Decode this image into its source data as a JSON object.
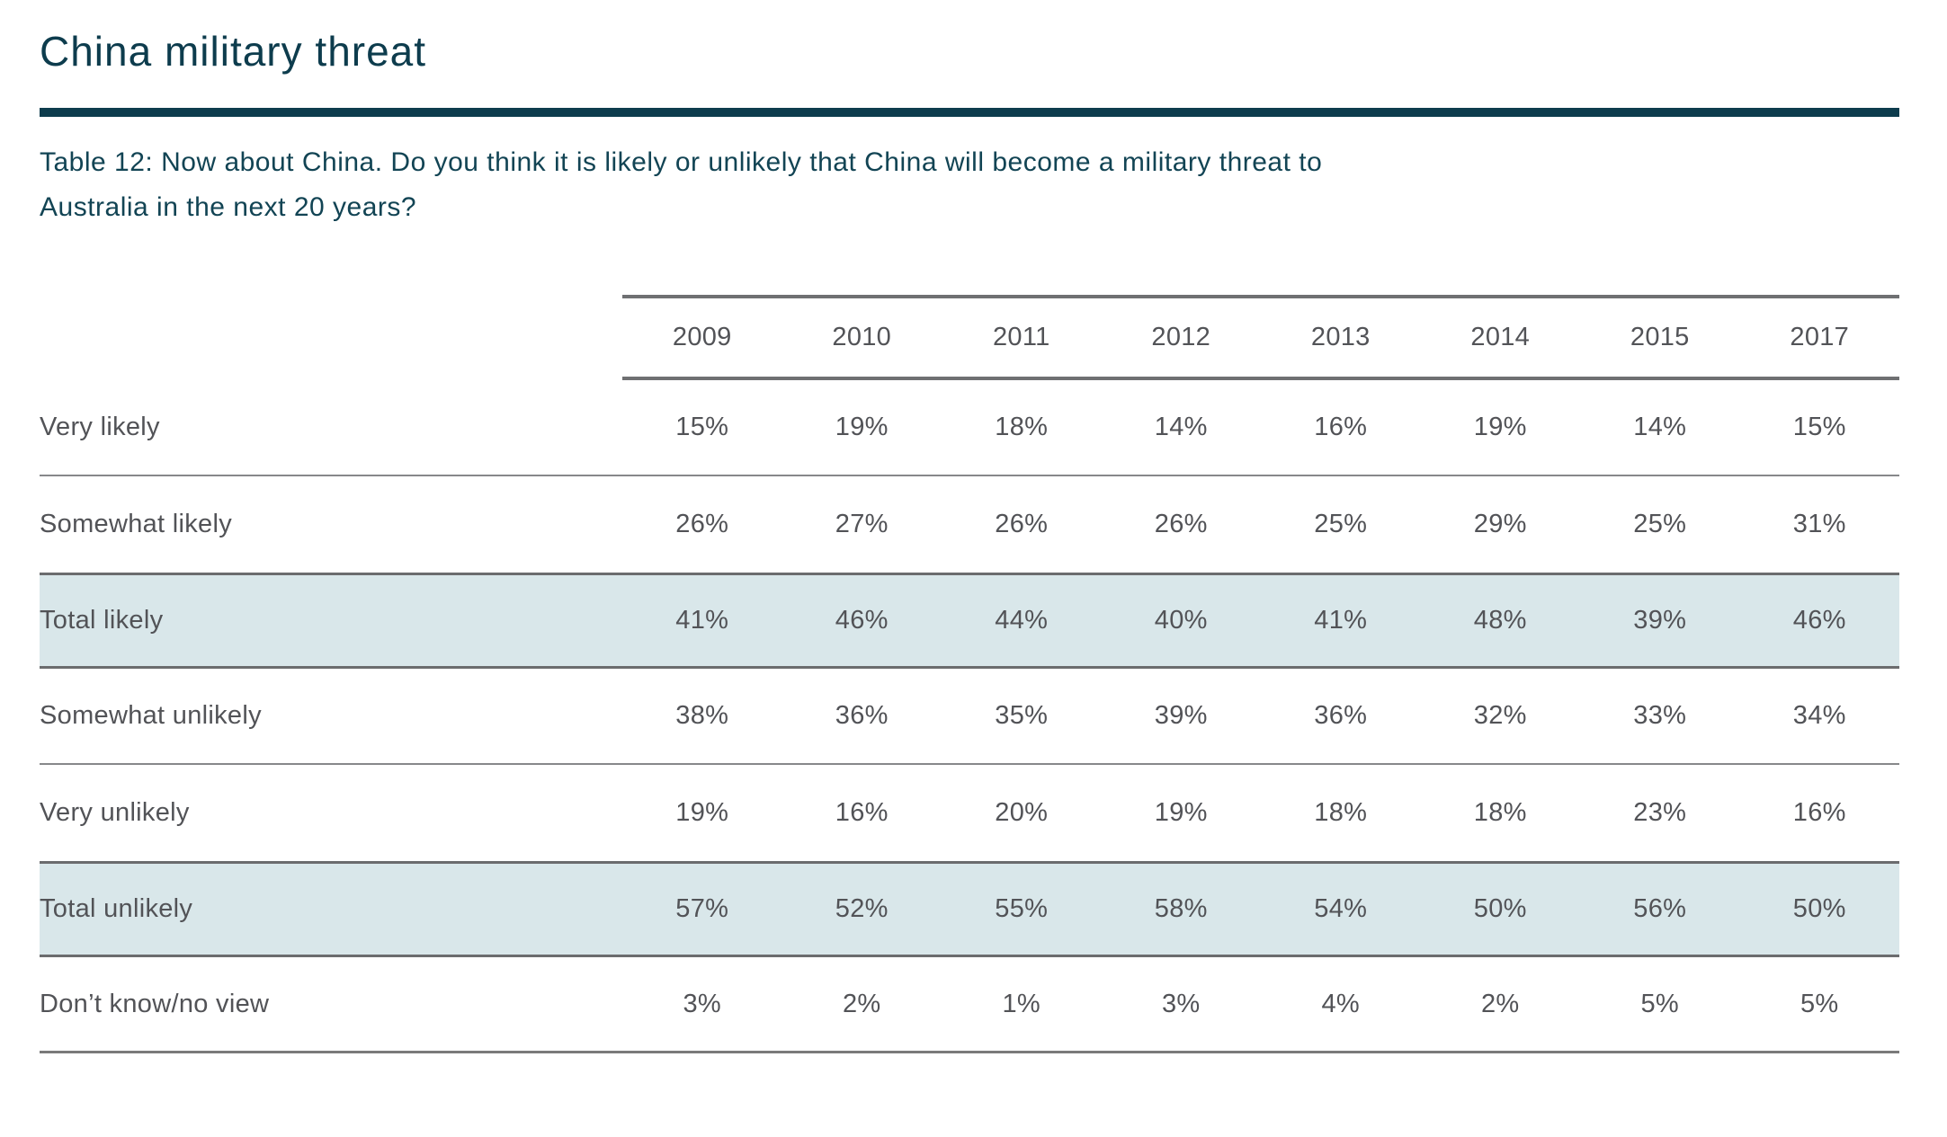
{
  "header": {
    "title": "China military threat",
    "caption_line1": "Table 12: Now about China. Do you think it is likely or unlikely that China will become a military threat to",
    "caption_line2": "Australia in the next 20 years?"
  },
  "colors": {
    "brand_teal": "#0d3c4d",
    "caption_teal": "#124454",
    "table_text_gray": "#525357",
    "highlight_row_bg": "#d9e7ea",
    "header_line_gray": "#6f7072",
    "separator_gray": "#87888a"
  },
  "chart_data": {
    "type": "table",
    "title": "China military threat",
    "caption": "Table 12: Now about China. Do you think it is likely or unlikely that China will become a military threat to Australia in the next 20 years?",
    "columns": [
      "2009",
      "2010",
      "2011",
      "2012",
      "2013",
      "2014",
      "2015",
      "2017"
    ],
    "rows": [
      {
        "label": "Very likely",
        "values": [
          "15%",
          "19%",
          "18%",
          "14%",
          "16%",
          "19%",
          "14%",
          "15%"
        ],
        "highlight": false
      },
      {
        "label": "Somewhat likely",
        "values": [
          "26%",
          "27%",
          "26%",
          "26%",
          "25%",
          "29%",
          "25%",
          "31%"
        ],
        "highlight": false
      },
      {
        "label": "Total likely",
        "values": [
          "41%",
          "46%",
          "44%",
          "40%",
          "41%",
          "48%",
          "39%",
          "46%"
        ],
        "highlight": true
      },
      {
        "label": "Somewhat unlikely",
        "values": [
          "38%",
          "36%",
          "35%",
          "39%",
          "36%",
          "32%",
          "33%",
          "34%"
        ],
        "highlight": false
      },
      {
        "label": "Very unlikely",
        "values": [
          "19%",
          "16%",
          "20%",
          "19%",
          "18%",
          "18%",
          "23%",
          "16%"
        ],
        "highlight": false
      },
      {
        "label": "Total unlikely",
        "values": [
          "57%",
          "52%",
          "55%",
          "58%",
          "54%",
          "50%",
          "56%",
          "50%"
        ],
        "highlight": true
      },
      {
        "label": "Don’t know/no view",
        "values": [
          "3%",
          "2%",
          "1%",
          "3%",
          "4%",
          "2%",
          "5%",
          "5%"
        ],
        "highlight": false
      }
    ],
    "layout": {
      "highlight_rows": [
        "Total likely",
        "Total unlikely"
      ],
      "value_alignment": "center",
      "header_rule": "above and below year columns only",
      "row_separators": "full width"
    }
  }
}
